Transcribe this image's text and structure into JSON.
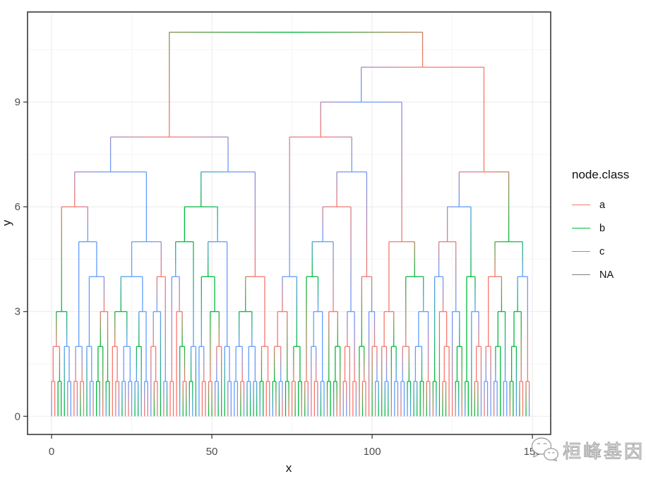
{
  "chart_data": {
    "type": "dendrogram",
    "title": "",
    "xlabel": "x",
    "ylabel": "y",
    "x_ticks": [
      0,
      50,
      100,
      150
    ],
    "x_tick_labels": [
      "0",
      "50",
      "100",
      "150"
    ],
    "x_minor_ticks": [
      25,
      75,
      125
    ],
    "y_ticks": [
      0,
      3,
      6,
      9
    ],
    "y_tick_labels": [
      "0",
      "3",
      "6",
      "9"
    ],
    "y_minor_ticks": [
      1.5,
      4.5,
      7.5,
      10.5
    ],
    "xlim": [
      -7.5,
      155.7
    ],
    "ylim": [
      -0.52,
      11.58
    ],
    "n_leaves": 150,
    "leaf_x_start": 0,
    "leaf_x_step": 1,
    "leaf_height": 0,
    "root_height": 11,
    "merge_rule": "binary merges; node height = max(child heights) + 1 (integer levels 1-11); node x = midpoint of children",
    "edge_style": "elbow segments with color gradient from parent node class color to child node class color",
    "classes": [
      {
        "label": "a",
        "color": "#F8766D"
      },
      {
        "label": "b",
        "color": "#00BA38"
      },
      {
        "label": "c",
        "color": "#619CFF"
      },
      {
        "label": "NA",
        "color": "#7F7F7F"
      }
    ],
    "legend": {
      "title": "node.class",
      "position": "right"
    },
    "grid": "major and minor gridlines on",
    "style": {
      "grid_major": "#ebebeb",
      "grid_minor": "#f6f6f6",
      "panel_border": "#383838",
      "axis_text_color": "#4d4d4d",
      "axis_title_color": "#111111",
      "line_width": 1.3
    }
  },
  "watermark": {
    "text": "桓峰基因",
    "icon": "wechat-logo"
  }
}
